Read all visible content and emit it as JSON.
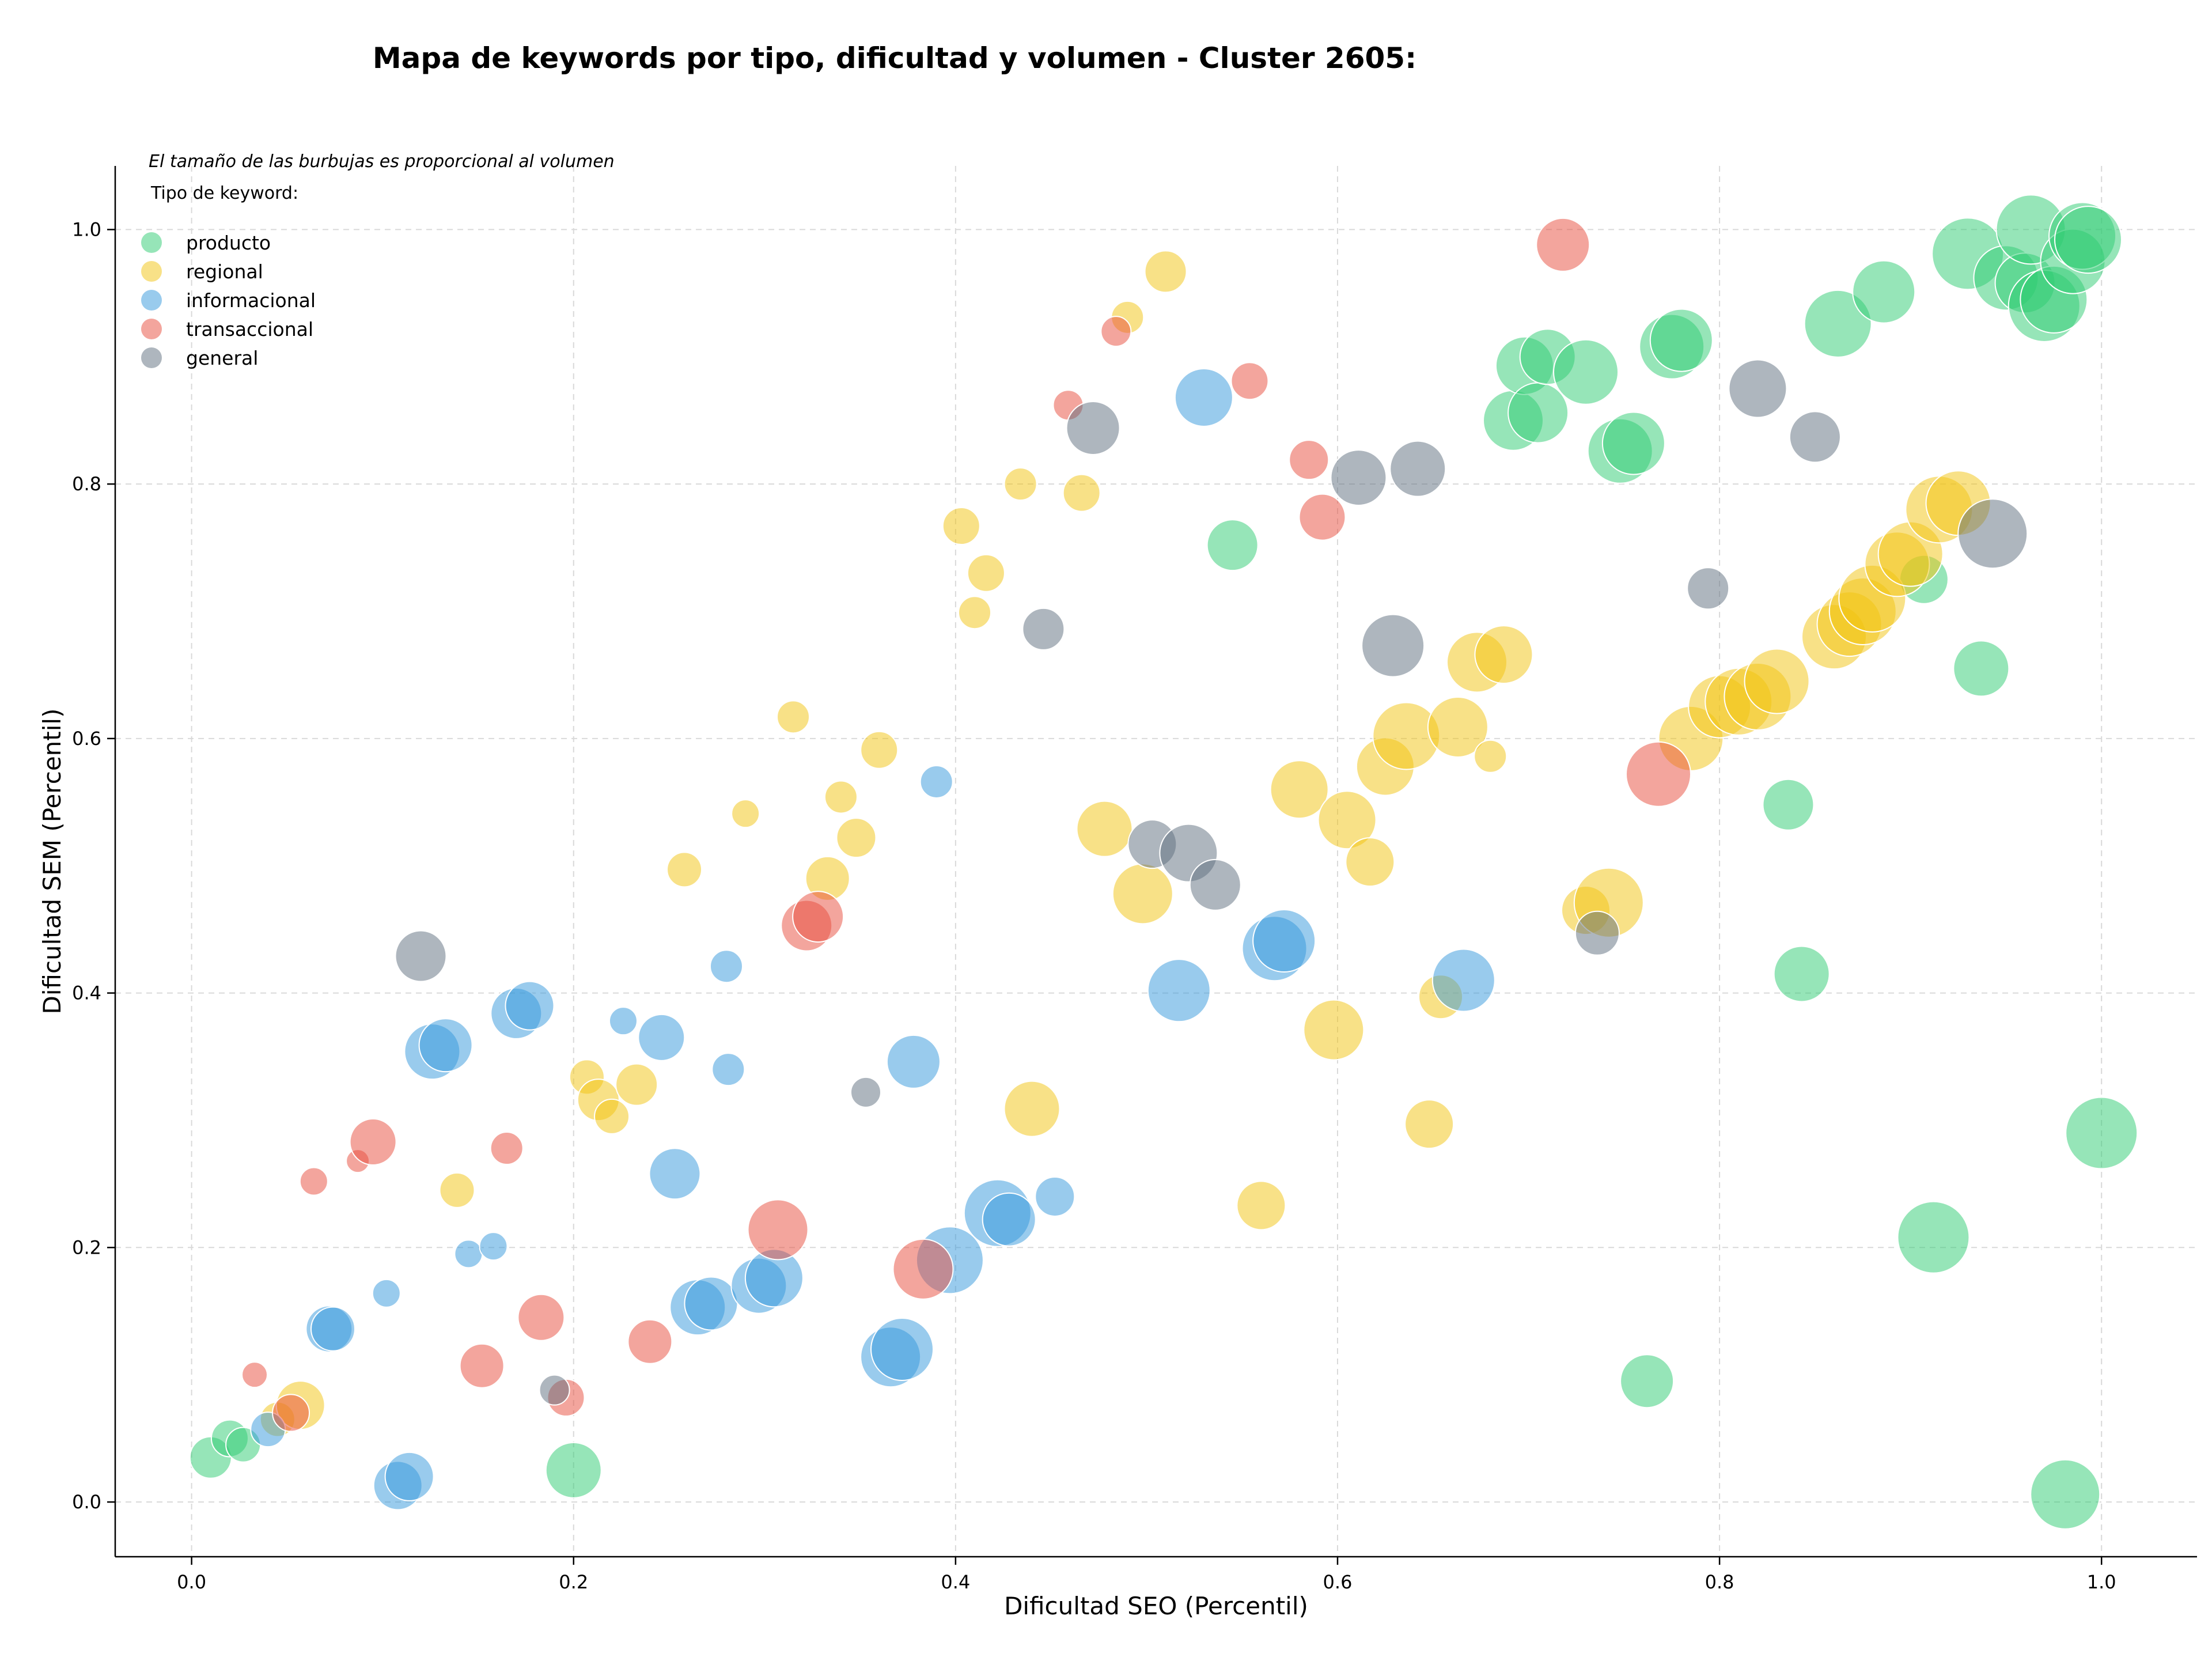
{
  "chart_data": {
    "type": "scatter",
    "title": "Mapa de keywords por tipo, dificultad y volumen - Cluster 2605:",
    "xlabel": "Dificultad SEO (Percentil)",
    "ylabel": "Dificultad SEM (Percentil)",
    "xlim": [
      -0.04,
      1.05
    ],
    "ylim": [
      -0.043,
      1.05
    ],
    "xticks": [
      0.0,
      0.2,
      0.4,
      0.6,
      0.8,
      1.0
    ],
    "yticks": [
      0.0,
      0.2,
      0.4,
      0.6,
      0.8,
      1.0
    ],
    "xtick_labels": [
      "0.0",
      "0.2",
      "0.4",
      "0.6",
      "0.8",
      "1.0"
    ],
    "ytick_labels": [
      "0.0",
      "0.2",
      "0.4",
      "0.6",
      "0.8",
      "1.0"
    ],
    "grid": true,
    "legend_position": "top-left",
    "size_note": "El tamaño de las burbujas es proporcional al volumen",
    "legend_title": "Tipo de keyword:",
    "series": [
      {
        "name": "producto",
        "color": "#2ecc71",
        "points": [
          [
            0.01,
            0.035,
            36
          ],
          [
            0.02,
            0.05,
            32
          ],
          [
            0.027,
            0.045,
            30
          ],
          [
            0.2,
            0.025,
            48
          ],
          [
            0.545,
            0.752,
            44
          ],
          [
            0.692,
            0.85,
            52
          ],
          [
            0.698,
            0.893,
            50
          ],
          [
            0.705,
            0.856,
            52
          ],
          [
            0.71,
            0.9,
            48
          ],
          [
            0.73,
            0.888,
            56
          ],
          [
            0.748,
            0.826,
            56
          ],
          [
            0.755,
            0.832,
            54
          ],
          [
            0.775,
            0.908,
            56
          ],
          [
            0.78,
            0.913,
            54
          ],
          [
            0.836,
            0.548,
            44
          ],
          [
            0.843,
            0.415,
            48
          ],
          [
            0.862,
            0.926,
            58
          ],
          [
            0.886,
            0.951,
            54
          ],
          [
            0.907,
            0.725,
            42
          ],
          [
            0.912,
            0.208,
            62
          ],
          [
            0.93,
            0.981,
            62
          ],
          [
            0.937,
            0.655,
            48
          ],
          [
            0.95,
            0.962,
            56
          ],
          [
            0.96,
            0.958,
            52
          ],
          [
            0.963,
            1.0,
            60
          ],
          [
            0.97,
            0.94,
            62
          ],
          [
            0.975,
            0.945,
            58
          ],
          [
            0.985,
            0.975,
            56
          ],
          [
            0.99,
            0.995,
            58
          ],
          [
            0.993,
            0.992,
            58
          ],
          [
            0.762,
            0.095,
            46
          ],
          [
            1.0,
            0.29,
            62
          ],
          [
            0.981,
            0.006,
            60
          ]
        ]
      },
      {
        "name": "regional",
        "color": "#f1c40f",
        "points": [
          [
            0.045,
            0.065,
            30
          ],
          [
            0.057,
            0.076,
            42
          ],
          [
            0.139,
            0.245,
            30
          ],
          [
            0.207,
            0.334,
            30
          ],
          [
            0.213,
            0.316,
            36
          ],
          [
            0.22,
            0.303,
            30
          ],
          [
            0.233,
            0.328,
            36
          ],
          [
            0.258,
            0.497,
            30
          ],
          [
            0.29,
            0.541,
            24
          ],
          [
            0.315,
            0.617,
            28
          ],
          [
            0.333,
            0.49,
            38
          ],
          [
            0.34,
            0.554,
            28
          ],
          [
            0.348,
            0.522,
            34
          ],
          [
            0.36,
            0.591,
            32
          ],
          [
            0.403,
            0.767,
            32
          ],
          [
            0.41,
            0.699,
            28
          ],
          [
            0.416,
            0.73,
            32
          ],
          [
            0.434,
            0.8,
            28
          ],
          [
            0.44,
            0.309,
            48
          ],
          [
            0.466,
            0.793,
            32
          ],
          [
            0.478,
            0.529,
            48
          ],
          [
            0.49,
            0.931,
            28
          ],
          [
            0.498,
            0.478,
            52
          ],
          [
            0.51,
            0.967,
            36
          ],
          [
            0.56,
            0.233,
            42
          ],
          [
            0.58,
            0.56,
            50
          ],
          [
            0.598,
            0.371,
            52
          ],
          [
            0.605,
            0.536,
            50
          ],
          [
            0.617,
            0.503,
            42
          ],
          [
            0.625,
            0.578,
            50
          ],
          [
            0.636,
            0.602,
            58
          ],
          [
            0.648,
            0.297,
            42
          ],
          [
            0.654,
            0.397,
            38
          ],
          [
            0.663,
            0.609,
            52
          ],
          [
            0.673,
            0.66,
            52
          ],
          [
            0.68,
            0.586,
            28
          ],
          [
            0.687,
            0.666,
            50
          ],
          [
            0.73,
            0.465,
            42
          ],
          [
            0.742,
            0.471,
            60
          ],
          [
            0.785,
            0.6,
            56
          ],
          [
            0.8,
            0.625,
            54
          ],
          [
            0.81,
            0.629,
            58
          ],
          [
            0.82,
            0.633,
            58
          ],
          [
            0.83,
            0.645,
            56
          ],
          [
            0.86,
            0.68,
            56
          ],
          [
            0.868,
            0.69,
            56
          ],
          [
            0.875,
            0.7,
            58
          ],
          [
            0.88,
            0.71,
            58
          ],
          [
            0.893,
            0.737,
            56
          ],
          [
            0.9,
            0.745,
            56
          ],
          [
            0.915,
            0.78,
            58
          ],
          [
            0.925,
            0.785,
            56
          ]
        ]
      },
      {
        "name": "informacional",
        "color": "#3498db",
        "points": [
          [
            0.04,
            0.057,
            30
          ],
          [
            0.072,
            0.136,
            40
          ],
          [
            0.074,
            0.136,
            38
          ],
          [
            0.102,
            0.164,
            24
          ],
          [
            0.108,
            0.013,
            42
          ],
          [
            0.114,
            0.02,
            42
          ],
          [
            0.126,
            0.354,
            48
          ],
          [
            0.133,
            0.359,
            46
          ],
          [
            0.145,
            0.195,
            24
          ],
          [
            0.158,
            0.201,
            24
          ],
          [
            0.17,
            0.384,
            44
          ],
          [
            0.177,
            0.39,
            42
          ],
          [
            0.226,
            0.378,
            24
          ],
          [
            0.246,
            0.365,
            40
          ],
          [
            0.253,
            0.258,
            44
          ],
          [
            0.265,
            0.153,
            48
          ],
          [
            0.272,
            0.156,
            46
          ],
          [
            0.28,
            0.421,
            28
          ],
          [
            0.281,
            0.34,
            28
          ],
          [
            0.297,
            0.17,
            48
          ],
          [
            0.305,
            0.176,
            50
          ],
          [
            0.366,
            0.114,
            52
          ],
          [
            0.372,
            0.12,
            54
          ],
          [
            0.378,
            0.346,
            46
          ],
          [
            0.39,
            0.566,
            28
          ],
          [
            0.397,
            0.19,
            58
          ],
          [
            0.422,
            0.227,
            58
          ],
          [
            0.428,
            0.222,
            46
          ],
          [
            0.452,
            0.24,
            34
          ],
          [
            0.53,
            0.868,
            50
          ],
          [
            0.517,
            0.402,
            54
          ],
          [
            0.567,
            0.435,
            56
          ],
          [
            0.572,
            0.441,
            54
          ],
          [
            0.666,
            0.41,
            54
          ]
        ]
      },
      {
        "name": "transaccional",
        "color": "#e74c3c",
        "points": [
          [
            0.033,
            0.1,
            22
          ],
          [
            0.052,
            0.07,
            32
          ],
          [
            0.064,
            0.252,
            24
          ],
          [
            0.087,
            0.268,
            20
          ],
          [
            0.095,
            0.283,
            40
          ],
          [
            0.152,
            0.107,
            38
          ],
          [
            0.165,
            0.278,
            28
          ],
          [
            0.183,
            0.145,
            40
          ],
          [
            0.196,
            0.082,
            32
          ],
          [
            0.24,
            0.126,
            38
          ],
          [
            0.307,
            0.214,
            52
          ],
          [
            0.322,
            0.453,
            44
          ],
          [
            0.328,
            0.46,
            44
          ],
          [
            0.383,
            0.183,
            52
          ],
          [
            0.459,
            0.862,
            26
          ],
          [
            0.484,
            0.92,
            26
          ],
          [
            0.554,
            0.881,
            32
          ],
          [
            0.585,
            0.819,
            34
          ],
          [
            0.592,
            0.774,
            40
          ],
          [
            0.718,
            0.988,
            46
          ],
          [
            0.768,
            0.572,
            56
          ]
        ]
      },
      {
        "name": "general",
        "color": "#5d6d7e",
        "points": [
          [
            0.12,
            0.429,
            44
          ],
          [
            0.19,
            0.088,
            26
          ],
          [
            0.353,
            0.322,
            26
          ],
          [
            0.446,
            0.686,
            36
          ],
          [
            0.472,
            0.844,
            46
          ],
          [
            0.503,
            0.517,
            42
          ],
          [
            0.522,
            0.51,
            50
          ],
          [
            0.536,
            0.485,
            44
          ],
          [
            0.611,
            0.805,
            48
          ],
          [
            0.629,
            0.673,
            54
          ],
          [
            0.642,
            0.812,
            48
          ],
          [
            0.736,
            0.447,
            38
          ],
          [
            0.794,
            0.718,
            36
          ],
          [
            0.82,
            0.875,
            50
          ],
          [
            0.85,
            0.837,
            44
          ],
          [
            0.943,
            0.761,
            60
          ]
        ]
      }
    ]
  }
}
